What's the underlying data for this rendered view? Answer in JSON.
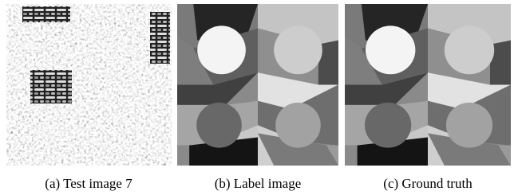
{
  "figure": {
    "panels": [
      {
        "caption": "(a) Test image 7"
      },
      {
        "caption": "(b) Label image"
      },
      {
        "caption": "(c) Ground truth"
      }
    ]
  }
}
